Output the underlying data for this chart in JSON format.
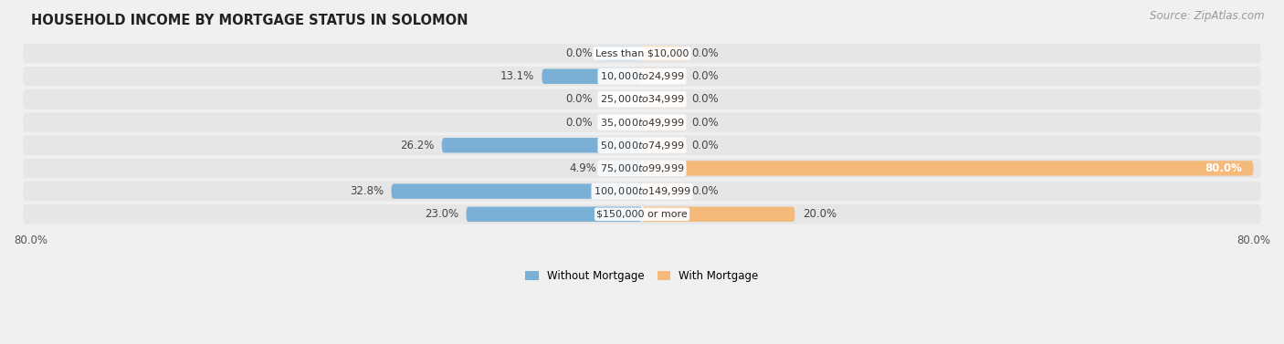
{
  "title": "HOUSEHOLD INCOME BY MORTGAGE STATUS IN SOLOMON",
  "source": "Source: ZipAtlas.com",
  "categories": [
    "Less than $10,000",
    "$10,000 to $24,999",
    "$25,000 to $34,999",
    "$35,000 to $49,999",
    "$50,000 to $74,999",
    "$75,000 to $99,999",
    "$100,000 to $149,999",
    "$150,000 or more"
  ],
  "without_mortgage": [
    0.0,
    13.1,
    0.0,
    0.0,
    26.2,
    4.9,
    32.8,
    23.0
  ],
  "with_mortgage": [
    0.0,
    0.0,
    0.0,
    0.0,
    0.0,
    80.0,
    0.0,
    20.0
  ],
  "color_without": "#7aafd6",
  "color_without_light": "#c5ddf0",
  "color_with": "#f5b97a",
  "color_with_light": "#fad9b5",
  "axis_limit": 80.0,
  "bg_color": "#f0f0f0",
  "row_bg_color": "#e6e6e6",
  "bar_height": 0.65,
  "stub_size": 5.5,
  "title_fontsize": 10.5,
  "label_fontsize": 8.5,
  "tick_fontsize": 8.5,
  "source_fontsize": 8.5,
  "category_fontsize": 8.0
}
